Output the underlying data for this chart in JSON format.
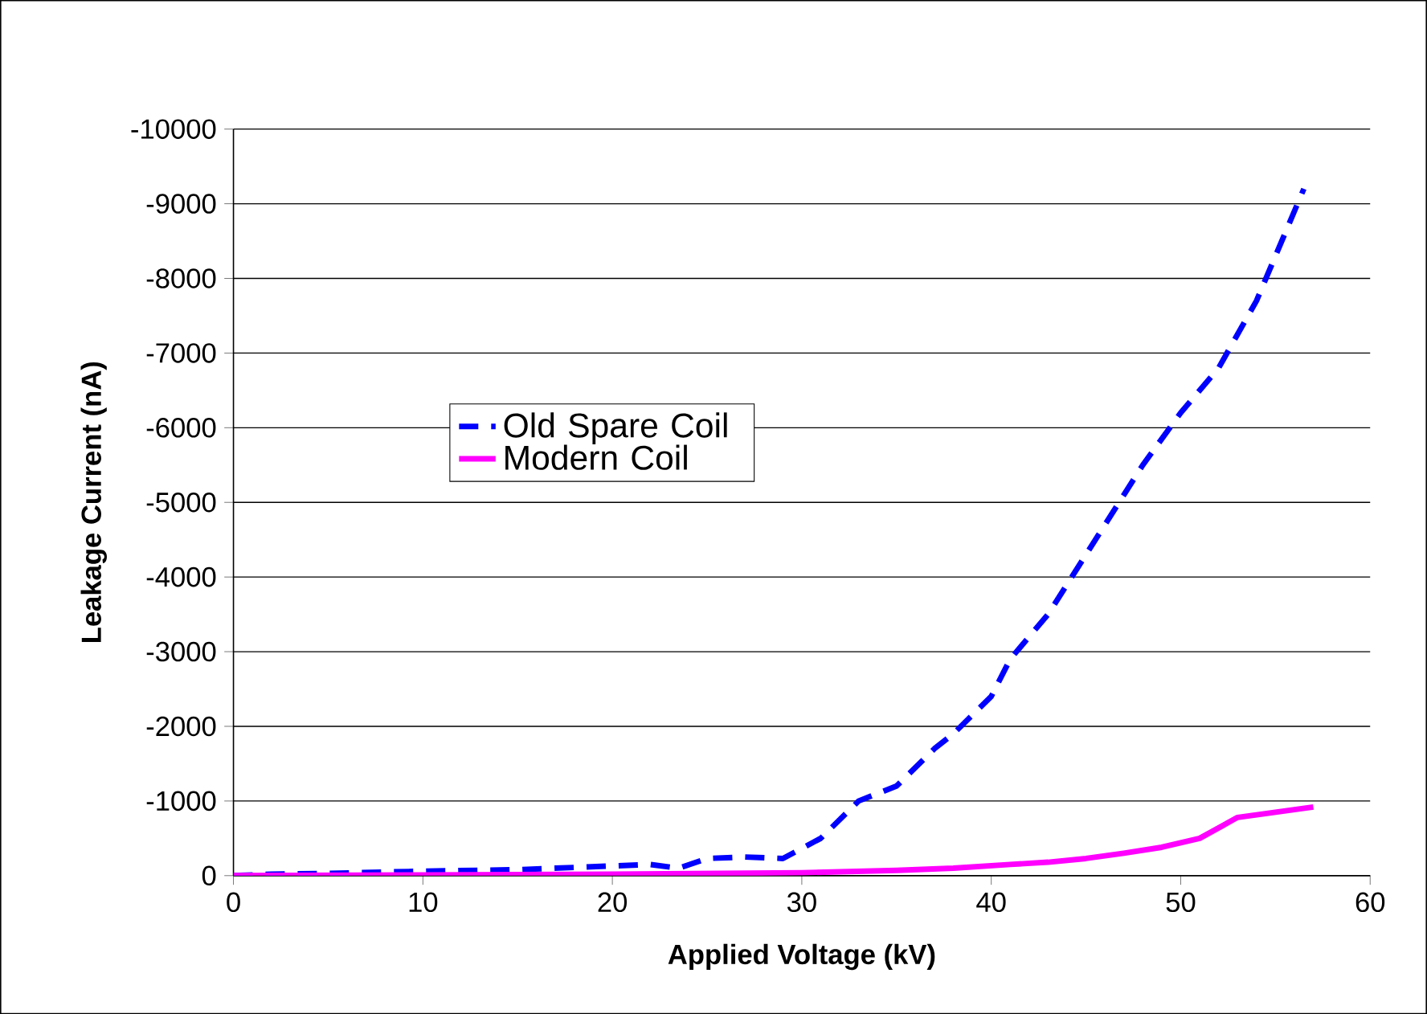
{
  "chart_data": {
    "type": "line",
    "xlabel": "Applied Voltage (kV)",
    "ylabel": "Leakage Current (nA)",
    "xlim": [
      0,
      60
    ],
    "xticks": [
      0,
      10,
      20,
      30,
      40,
      50,
      60
    ],
    "ylim": [
      0,
      -10000
    ],
    "yticks": [
      0,
      -1000,
      -2000,
      -3000,
      -4000,
      -5000,
      -6000,
      -7000,
      -8000,
      -9000,
      -10000
    ],
    "grid": "y",
    "legend": "left",
    "marker": "none",
    "series": [
      {
        "name": "Old Spare Coil",
        "color": "#0000ff",
        "line_style": "dashed",
        "x": [
          0,
          2,
          5,
          10,
          15,
          20,
          22,
          23.5,
          25,
          27,
          29,
          31,
          33,
          35,
          37,
          38,
          40,
          41,
          43,
          45,
          46.5,
          48,
          50,
          52,
          54,
          56.5
        ],
        "values": [
          0,
          -20,
          -30,
          -60,
          -80,
          -130,
          -150,
          -100,
          -230,
          -250,
          -230,
          -500,
          -1000,
          -1200,
          -1700,
          -1900,
          -2400,
          -2900,
          -3500,
          -4300,
          -4900,
          -5500,
          -6200,
          -6800,
          -7700,
          -9200
        ]
      },
      {
        "name": "Modern Coil",
        "color": "#ff00ff",
        "line_style": "solid",
        "x": [
          0,
          10,
          20,
          30,
          35,
          38,
          41,
          43,
          45,
          47,
          49,
          51,
          53,
          55,
          57
        ],
        "values": [
          0,
          -10,
          -20,
          -40,
          -70,
          -100,
          -150,
          -180,
          -230,
          -300,
          -380,
          -500,
          -780,
          -850,
          -920
        ]
      }
    ]
  }
}
